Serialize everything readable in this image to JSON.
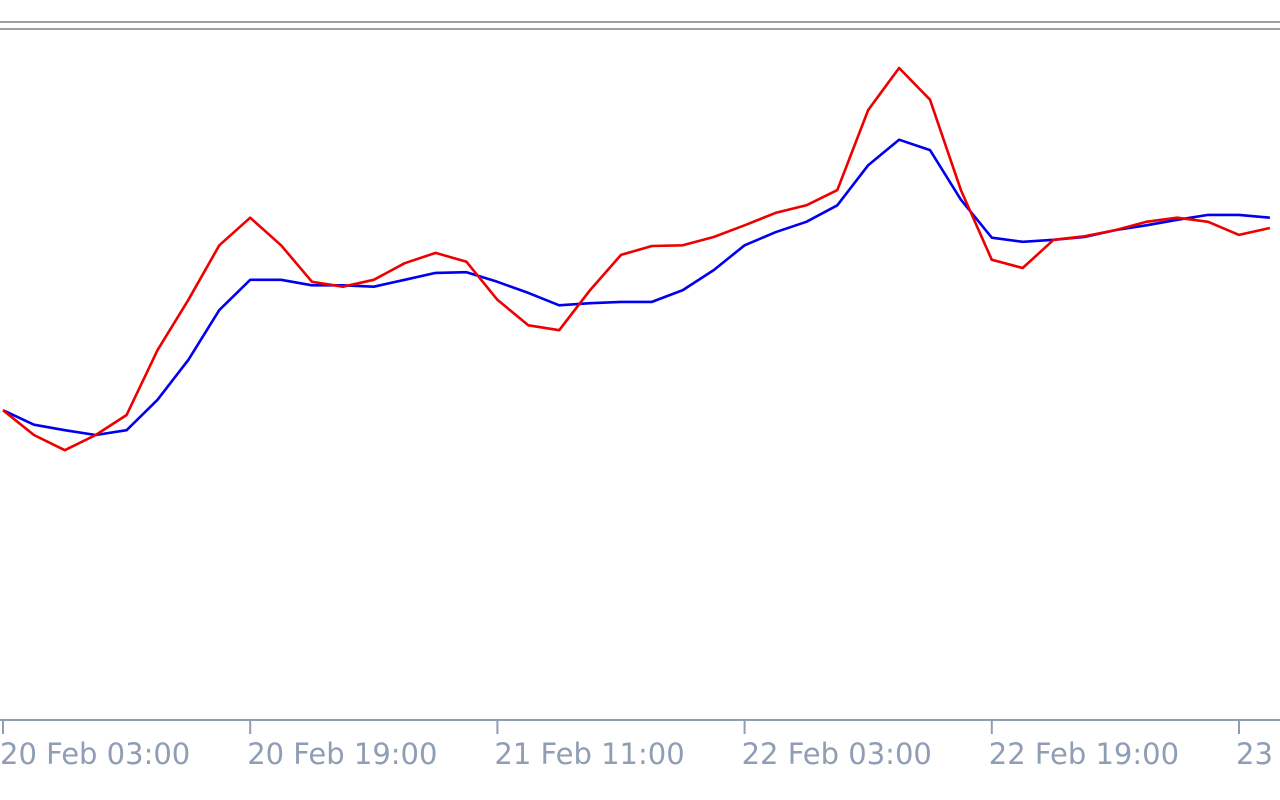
{
  "chart_data": {
    "type": "line",
    "categories": [
      "20 Feb 03:00",
      null,
      null,
      null,
      null,
      null,
      null,
      null,
      "20 Feb 19:00",
      null,
      null,
      null,
      null,
      null,
      null,
      null,
      "21 Feb 11:00",
      null,
      null,
      null,
      null,
      null,
      null,
      null,
      "22 Feb 03:00",
      null,
      null,
      null,
      null,
      null,
      null,
      null,
      "22 Feb 19:00",
      null,
      null,
      null,
      null,
      null,
      null,
      null,
      "23",
      null
    ],
    "ylim": [
      0,
      100
    ],
    "series": [
      {
        "color": "#0000ee",
        "values": [
          44.9,
          42.8,
          42.0,
          41.3,
          42.0,
          46.4,
          52.2,
          59.4,
          63.8,
          63.8,
          63.0,
          63.0,
          62.8,
          63.8,
          64.8,
          64.9,
          63.5,
          61.9,
          60.1,
          60.4,
          60.6,
          60.6,
          62.3,
          65.2,
          68.8,
          70.7,
          72.2,
          74.6,
          80.4,
          84.1,
          82.6,
          75.4,
          69.9,
          69.3,
          69.6,
          70.0,
          71.0,
          71.7,
          72.5,
          73.2,
          73.2,
          72.8
        ]
      },
      {
        "color": "#ee0000",
        "values": [
          44.9,
          41.3,
          39.1,
          41.3,
          44.2,
          53.6,
          60.9,
          68.8,
          72.8,
          68.8,
          63.5,
          62.8,
          63.8,
          66.2,
          67.7,
          66.4,
          60.9,
          57.2,
          56.5,
          62.3,
          67.4,
          68.7,
          68.8,
          70.0,
          71.7,
          73.5,
          74.6,
          76.8,
          88.4,
          94.5,
          89.9,
          76.8,
          66.7,
          65.5,
          69.6,
          70.1,
          71.0,
          72.2,
          72.8,
          72.2,
          70.3,
          71.3
        ]
      }
    ]
  }
}
